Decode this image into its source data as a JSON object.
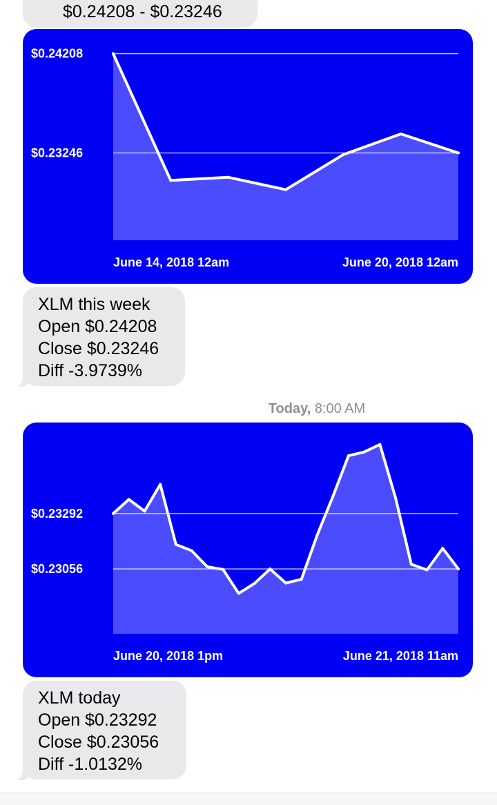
{
  "messages": {
    "range_bubble": {
      "text": "$0.24208 - $0.23246"
    },
    "week_summary": {
      "lines": [
        "XLM this week",
        "Open $0.24208",
        "Close $0.23246",
        "Diff -3.9739%"
      ]
    },
    "timestamp": {
      "day": "Today,",
      "time": "8:00 AM"
    },
    "today_summary": {
      "lines": [
        "XLM today",
        "Open $0.23292",
        "Close $0.23056",
        "Diff -1.0132%"
      ]
    }
  },
  "colors": {
    "chart_background": "#0000f5",
    "chart_fill": "#4b4bff",
    "line": "#ffffff",
    "bubble": "#e9e9eb",
    "timestamp": "#8e8e93"
  },
  "chart_data": [
    {
      "type": "area",
      "y_ticks": [
        {
          "value": 0.24208,
          "label": "$0.24208"
        },
        {
          "value": 0.23246,
          "label": "$0.23246"
        }
      ],
      "x_labels": [
        "June 14, 2018 12am",
        "June 20, 2018 12am"
      ],
      "x": [
        0,
        1,
        2,
        3,
        4,
        5,
        6
      ],
      "values": [
        0.24208,
        0.2298,
        0.2301,
        0.2289,
        0.2323,
        0.2343,
        0.23246
      ],
      "ylim": [
        0.224,
        0.2438
      ],
      "grid": "horizontal lines at tick values"
    },
    {
      "type": "area",
      "y_ticks": [
        {
          "value": 0.23292,
          "label": "$0.23292"
        },
        {
          "value": 0.23056,
          "label": "$0.23056"
        }
      ],
      "x_labels": [
        "June 20, 2018 1pm",
        "June 21, 2018 11am"
      ],
      "x": [
        0,
        1,
        2,
        3,
        4,
        5,
        6,
        7,
        8,
        9,
        10,
        11,
        12,
        13,
        14,
        15,
        16,
        17,
        18,
        19,
        20,
        21,
        22
      ],
      "values": [
        0.23292,
        0.23352,
        0.23302,
        0.23416,
        0.2316,
        0.23134,
        0.23065,
        0.23054,
        0.22952,
        0.22994,
        0.23056,
        0.22996,
        0.23012,
        0.232,
        0.23364,
        0.23538,
        0.23554,
        0.23586,
        0.23358,
        0.23076,
        0.23052,
        0.23144,
        0.23056
      ],
      "ylim": [
        0.2278,
        0.2365
      ],
      "grid": "horizontal lines at tick values"
    }
  ]
}
